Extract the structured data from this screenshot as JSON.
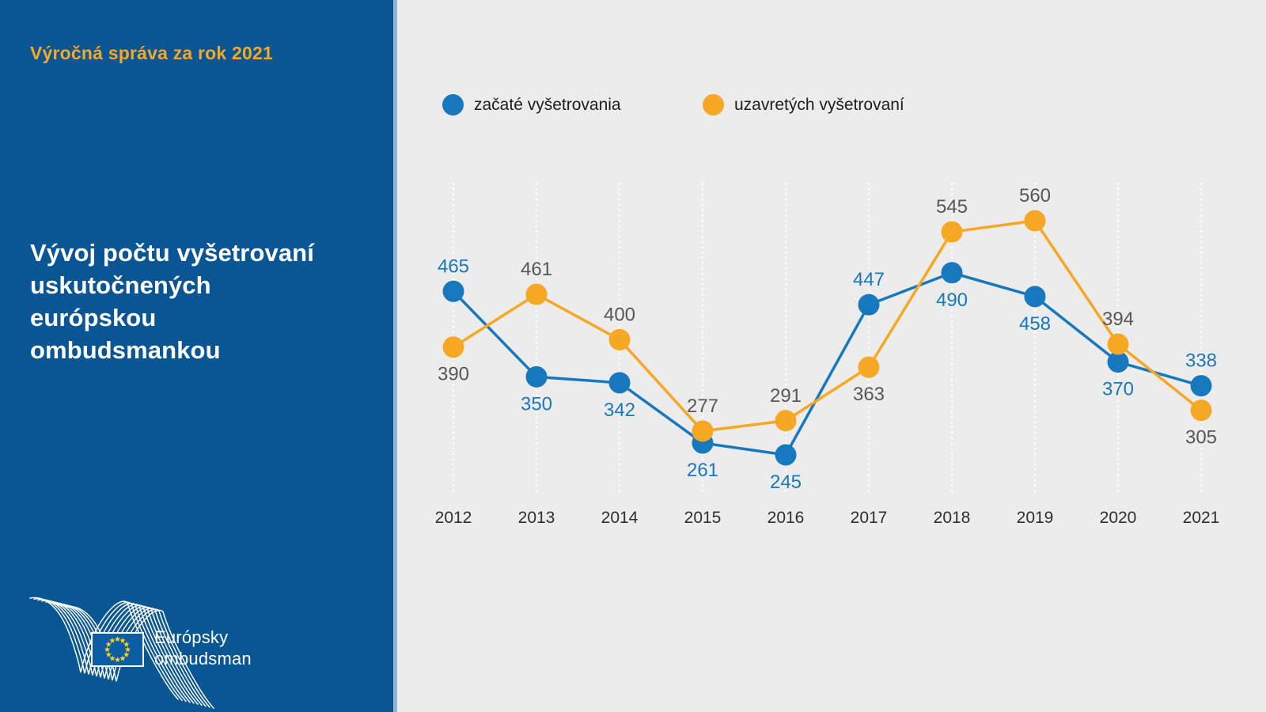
{
  "sidebar": {
    "report_label": "Výročná správa za rok 2021",
    "title_lines": [
      "Vývoj počtu vyšetrovaní",
      "uskutočnených",
      "európskou",
      "ombudsmankou"
    ],
    "logo": {
      "org_line1": "Európsky",
      "org_line2": "ombudsman"
    }
  },
  "chart_data": {
    "type": "line",
    "title": "Vývoj počtu vyšetrovaní uskutočnených európskou ombudsmankou",
    "x": [
      2012,
      2013,
      2014,
      2015,
      2016,
      2017,
      2018,
      2019,
      2020,
      2021
    ],
    "series": [
      {
        "name": "začaté vyšetrovania",
        "color": "#1878be",
        "label_color": "#1878be",
        "values": [
          465,
          350,
          342,
          261,
          245,
          447,
          490,
          458,
          370,
          338
        ]
      },
      {
        "name": "uzavretých vyšetrovaní",
        "color": "#f6a724",
        "label_color": "#575756",
        "values": [
          390,
          461,
          400,
          277,
          291,
          363,
          545,
          560,
          394,
          305
        ]
      }
    ],
    "ylim": [
      195,
      610
    ],
    "grid": "vertical-dotted-white",
    "legend_position": "top",
    "point_labels": true,
    "x_tick_color": "#2f2f2e"
  },
  "colors": {
    "panel_blue": "#0a5694",
    "background_gray": "#ececec",
    "accent_orange": "#f7a823",
    "series_blue": "#1878be",
    "series_orange": "#f6a724",
    "value_label_gray": "#575756",
    "eu_flag_blue": "#0d5da5",
    "eu_star_yellow": "#ffd617"
  }
}
